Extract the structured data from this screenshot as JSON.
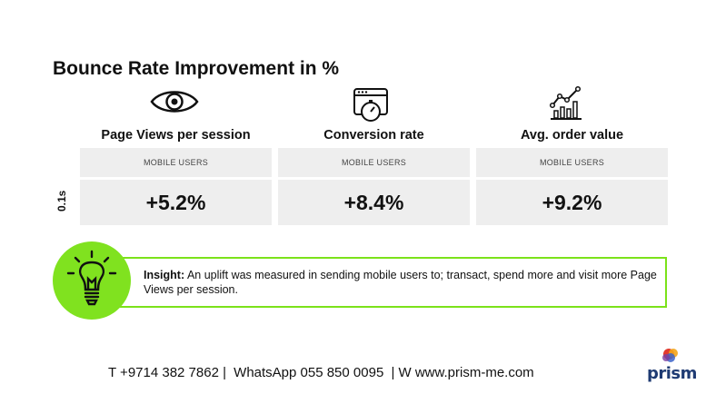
{
  "slide": {
    "title": "Bounce Rate Improvement in %",
    "row_label": "0.1s",
    "columns": [
      {
        "title": "Page Views per session",
        "icon": "eye-icon",
        "segment": "MOBILE USERS",
        "value": "+5.2%"
      },
      {
        "title": "Conversion rate",
        "icon": "browser-stopwatch-icon",
        "segment": "MOBILE USERS",
        "value": "+8.4%"
      },
      {
        "title": "Avg. order value",
        "icon": "bar-chart-trend-icon",
        "segment": "MOBILE USERS",
        "value": "+9.2%"
      }
    ],
    "insight": {
      "label": "Insight:",
      "text": "An uplift was measured in sending mobile users to; transact, spend more and visit more Page Views per session.",
      "icon": "lightbulb-icon"
    },
    "footer": {
      "phone": "T +9714 382 7862 |",
      "whatsapp": "WhatsApp 055 850 0095",
      "web": "| W www.prism-me.com"
    },
    "logo": {
      "text": "prism",
      "icon": "prism-logo-icon"
    }
  },
  "colors": {
    "accent_green": "#80e21f",
    "border_green": "#7be21a",
    "cell_gray": "#eeeeee",
    "logo_blue": "#1f3b73"
  }
}
